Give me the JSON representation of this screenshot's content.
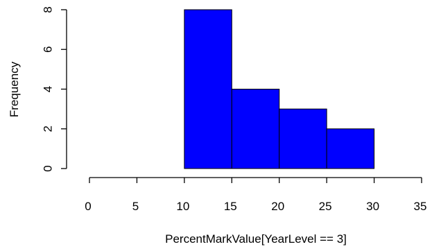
{
  "chart_data": {
    "type": "bar",
    "title": "",
    "xlabel": "PercentMarkValue[YearLevel == 3]",
    "ylabel": "Frequency",
    "bins": [
      {
        "from": 10,
        "to": 15,
        "count": 8
      },
      {
        "from": 15,
        "to": 20,
        "count": 4
      },
      {
        "from": 20,
        "to": 25,
        "count": 3
      },
      {
        "from": 25,
        "to": 30,
        "count": 2
      }
    ],
    "xlim": [
      0,
      35
    ],
    "ylim": [
      0,
      8
    ],
    "x_ticks": [
      0,
      5,
      10,
      15,
      20,
      25,
      30,
      35
    ],
    "y_ticks": [
      0,
      2,
      4,
      6,
      8
    ],
    "bar_color": "#0000ff",
    "bar_border_color": "#000000",
    "grid": false,
    "legend": "none"
  }
}
